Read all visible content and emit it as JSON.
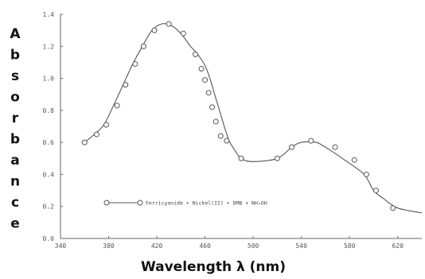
{
  "chart_data": {
    "type": "line",
    "title": "",
    "xlabel": "Wavelength λ (nm)",
    "ylabel": "Absorbance",
    "xlim": [
      340,
      640
    ],
    "ylim": [
      0,
      1.4
    ],
    "x_ticks": [
      "340",
      "380",
      "420",
      "460",
      "500",
      "540",
      "580",
      "620"
    ],
    "x_tick_values": [
      340,
      380,
      420,
      460,
      500,
      540,
      580,
      620
    ],
    "y_ticks": [
      "0.0",
      "0.2",
      "0.4",
      "0.6",
      "0.8",
      "1.0",
      "1.2",
      "1.4"
    ],
    "y_tick_values": [
      0.0,
      0.2,
      0.4,
      0.6,
      0.8,
      1.0,
      1.2,
      1.4
    ],
    "grid": false,
    "legend": "center-left",
    "series": [
      {
        "name": "Ferricyanide + Nickel(II) + DMB + NH₄OH",
        "x": [
          360,
          368,
          376,
          384,
          392,
          400,
          408,
          416,
          424,
          432,
          440,
          448,
          454,
          460,
          464,
          468,
          472,
          476,
          480,
          484,
          490,
          500,
          520,
          532,
          540,
          552,
          560,
          576,
          592,
          600,
          608,
          620,
          640
        ],
        "y": [
          0.6,
          0.65,
          0.71,
          0.83,
          0.96,
          1.09,
          1.2,
          1.3,
          1.34,
          1.33,
          1.28,
          1.2,
          1.15,
          1.08,
          1.0,
          0.9,
          0.8,
          0.7,
          0.61,
          0.56,
          0.5,
          0.48,
          0.5,
          0.57,
          0.6,
          0.6,
          0.57,
          0.49,
          0.4,
          0.3,
          0.25,
          0.19,
          0.16
        ],
        "markers": [
          [
            360,
            0.6
          ],
          [
            370,
            0.65
          ],
          [
            378,
            0.71
          ],
          [
            387,
            0.83
          ],
          [
            394,
            0.96
          ],
          [
            402,
            1.09
          ],
          [
            409,
            1.2
          ],
          [
            418,
            1.3
          ],
          [
            430,
            1.34
          ],
          [
            442,
            1.28
          ],
          [
            452,
            1.15
          ],
          [
            457,
            1.06
          ],
          [
            460,
            0.99
          ],
          [
            463,
            0.91
          ],
          [
            466,
            0.82
          ],
          [
            469,
            0.73
          ],
          [
            473,
            0.64
          ],
          [
            478,
            0.61
          ],
          [
            490,
            0.5
          ],
          [
            520,
            0.5
          ],
          [
            532,
            0.57
          ],
          [
            548,
            0.61
          ],
          [
            568,
            0.57
          ],
          [
            584,
            0.49
          ],
          [
            594,
            0.4
          ],
          [
            602,
            0.3
          ],
          [
            616,
            0.19
          ]
        ]
      }
    ]
  }
}
